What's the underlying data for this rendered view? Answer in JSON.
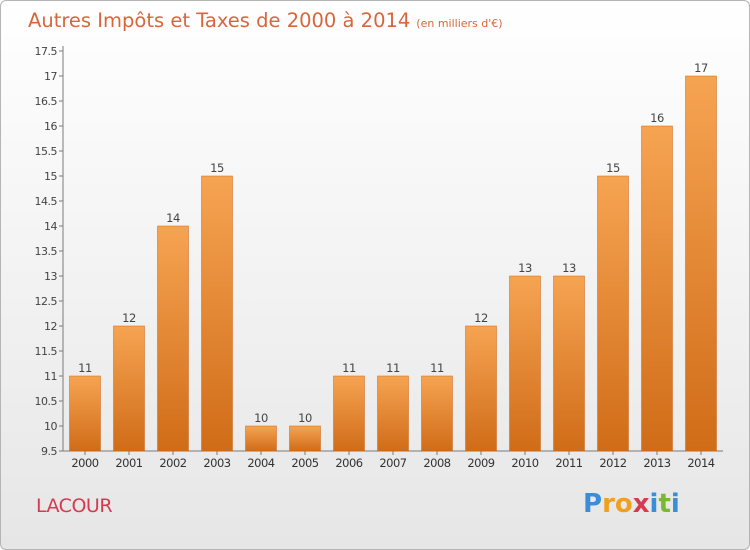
{
  "chart_data": {
    "type": "bar",
    "title": "Autres Impôts et Taxes de 2000 à 2014",
    "subtitle": "(en milliers d'€)",
    "categories": [
      "2000",
      "2001",
      "2002",
      "2003",
      "2004",
      "2005",
      "2006",
      "2007",
      "2008",
      "2009",
      "2010",
      "2011",
      "2012",
      "2013",
      "2014"
    ],
    "values": [
      11,
      12,
      14,
      15,
      10,
      10,
      11,
      11,
      11,
      12,
      13,
      13,
      15,
      16,
      17
    ],
    "data_labels": [
      "11",
      "12",
      "14",
      "15",
      "10",
      "10",
      "11",
      "11",
      "11",
      "12",
      "13",
      "13",
      "15",
      "16",
      "17"
    ],
    "y_ticks": [
      "9.5",
      "10",
      "10.5",
      "11",
      "11.5",
      "12",
      "12.5",
      "13",
      "13.5",
      "14",
      "14.5",
      "15",
      "15.5",
      "16",
      "16.5",
      "17",
      "17.5"
    ],
    "ylim": [
      9.5,
      17.5
    ],
    "grid": false,
    "bar_color": "#e8842e"
  },
  "footer": {
    "commune": "LACOUR",
    "logo_letters": [
      "P",
      "r",
      "o",
      "x",
      "i",
      "t",
      "i"
    ],
    "logo_colors": [
      "#3a8ed8",
      "#f0a020",
      "#f0a020",
      "#d63a50",
      "#3a8ed8",
      "#7ab830",
      "#3a8ed8"
    ]
  }
}
